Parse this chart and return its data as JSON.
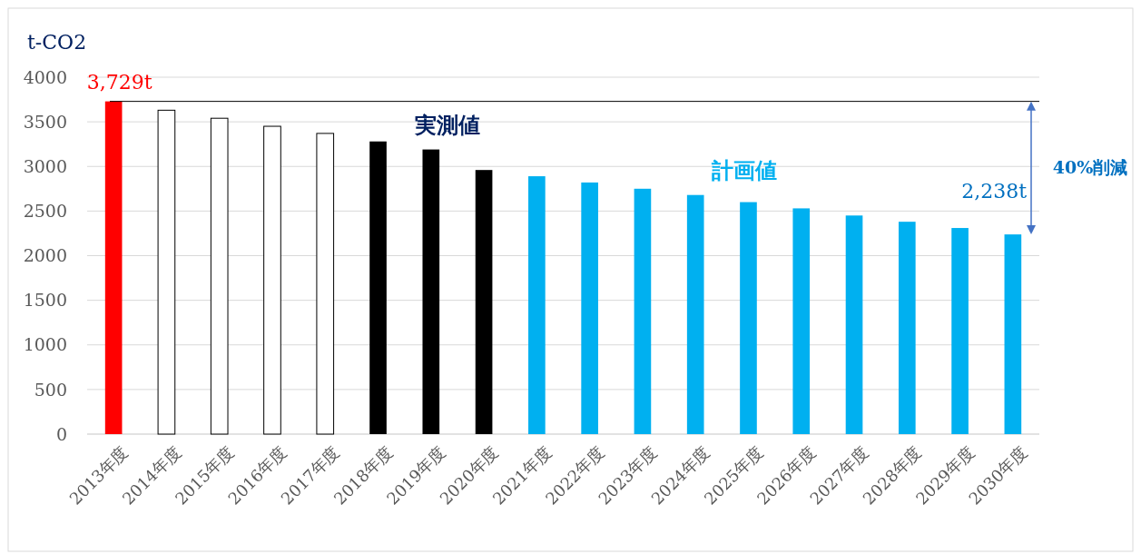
{
  "chart_data": {
    "type": "bar",
    "ylabel": "t-CO2",
    "categories": [
      "2013年度",
      "2014年度",
      "2015年度",
      "2016年度",
      "2017年度",
      "2018年度",
      "2019年度",
      "2020年度",
      "2021年度",
      "2022年度",
      "2023年度",
      "2024年度",
      "2025年度",
      "2026年度",
      "2027年度",
      "2028年度",
      "2029年度",
      "2030年度"
    ],
    "values": [
      3729,
      3630,
      3540,
      3450,
      3370,
      3280,
      3190,
      2960,
      2890,
      2820,
      2750,
      2680,
      2600,
      2530,
      2450,
      2380,
      2310,
      2238
    ],
    "colors": [
      "#ff0000",
      "#ffffff",
      "#ffffff",
      "#ffffff",
      "#ffffff",
      "#000000",
      "#000000",
      "#000000",
      "#00b0f0",
      "#00b0f0",
      "#00b0f0",
      "#00b0f0",
      "#00b0f0",
      "#00b0f0",
      "#00b0f0",
      "#00b0f0",
      "#00b0f0",
      "#00b0f0"
    ],
    "value_labels": [
      "3,729t",
      null,
      null,
      null,
      null,
      null,
      null,
      null,
      null,
      null,
      null,
      null,
      null,
      null,
      null,
      null,
      null,
      "2,238t"
    ],
    "ylim": [
      0,
      4000
    ],
    "yticks": [
      0,
      500,
      1000,
      1500,
      2000,
      2500,
      3000,
      3500,
      4000
    ],
    "grid": "y",
    "ref_lines": [
      {
        "axis": "y",
        "value": 3729,
        "color": "#000000"
      }
    ],
    "annotations": [
      "実測値",
      "計画値",
      "40%削減"
    ]
  }
}
